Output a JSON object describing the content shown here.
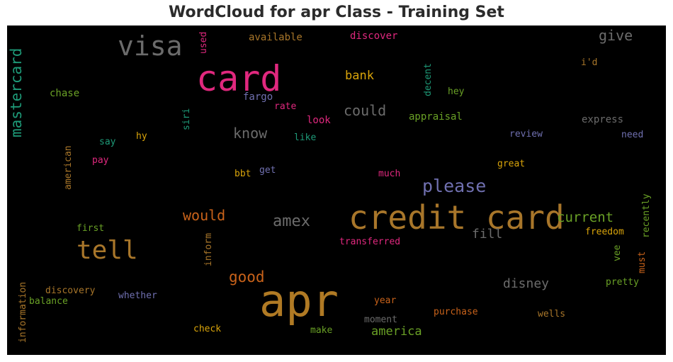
{
  "title": "WordCloud for apr Class - Training Set",
  "words": [
    {
      "text": "apr",
      "color": "#b07a24"
    },
    {
      "text": "credit card",
      "color": "#a8762a"
    },
    {
      "text": "card",
      "color": "#e0287e"
    },
    {
      "text": "visa",
      "color": "#6b6b6b"
    },
    {
      "text": "tell",
      "color": "#a8762a"
    },
    {
      "text": "please",
      "color": "#7070b0"
    },
    {
      "text": "mastercard",
      "color": "#1e9a78"
    },
    {
      "text": "amex",
      "color": "#6b6b6b"
    },
    {
      "text": "would",
      "color": "#c8621a"
    },
    {
      "text": "current",
      "color": "#6aa126"
    },
    {
      "text": "good",
      "color": "#c8621a"
    },
    {
      "text": "know",
      "color": "#6b6b6b"
    },
    {
      "text": "could",
      "color": "#6b6b6b"
    },
    {
      "text": "give",
      "color": "#6b6b6b"
    },
    {
      "text": "disney",
      "color": "#6b6b6b"
    },
    {
      "text": "bank",
      "color": "#d9a40a"
    },
    {
      "text": "fill",
      "color": "#6b6b6b"
    },
    {
      "text": "america",
      "color": "#6aa126"
    },
    {
      "text": "available",
      "color": "#a8762a"
    },
    {
      "text": "discover",
      "color": "#e0287e"
    },
    {
      "text": "used",
      "color": "#e0287e"
    },
    {
      "text": "i'd",
      "color": "#a8762a"
    },
    {
      "text": "chase",
      "color": "#6aa126"
    },
    {
      "text": "fargo",
      "color": "#7070b0"
    },
    {
      "text": "rate",
      "color": "#e0287e"
    },
    {
      "text": "decent",
      "color": "#1e9a78"
    },
    {
      "text": "hey",
      "color": "#6aa126"
    },
    {
      "text": "siri",
      "color": "#1e9a78"
    },
    {
      "text": "look",
      "color": "#e0287e"
    },
    {
      "text": "appraisal",
      "color": "#6aa126"
    },
    {
      "text": "express",
      "color": "#6b6b6b"
    },
    {
      "text": "hy",
      "color": "#d9a40a"
    },
    {
      "text": "like",
      "color": "#1e9a78"
    },
    {
      "text": "review",
      "color": "#7070b0"
    },
    {
      "text": "need",
      "color": "#7070b0"
    },
    {
      "text": "say",
      "color": "#1e9a78"
    },
    {
      "text": "american",
      "color": "#a8762a"
    },
    {
      "text": "pay",
      "color": "#e0287e"
    },
    {
      "text": "great",
      "color": "#d9a40a"
    },
    {
      "text": "bbt",
      "color": "#d9a40a"
    },
    {
      "text": "get",
      "color": "#7070b0"
    },
    {
      "text": "much",
      "color": "#e0287e"
    },
    {
      "text": "recently",
      "color": "#6aa126"
    },
    {
      "text": "first",
      "color": "#6aa126"
    },
    {
      "text": "freedom",
      "color": "#d9a40a"
    },
    {
      "text": "inform",
      "color": "#a8762a"
    },
    {
      "text": "transferred",
      "color": "#e0287e"
    },
    {
      "text": "vee",
      "color": "#6aa126"
    },
    {
      "text": "must",
      "color": "#c8621a"
    },
    {
      "text": "pretty",
      "color": "#6aa126"
    },
    {
      "text": "discovery",
      "color": "#a8762a"
    },
    {
      "text": "balance",
      "color": "#6aa126"
    },
    {
      "text": "whether",
      "color": "#7070b0"
    },
    {
      "text": "information",
      "color": "#a8762a"
    },
    {
      "text": "year",
      "color": "#c8621a"
    },
    {
      "text": "purchase",
      "color": "#c8621a"
    },
    {
      "text": "wells",
      "color": "#a8762a"
    },
    {
      "text": "moment",
      "color": "#6b6b6b"
    },
    {
      "text": "check",
      "color": "#d9a40a"
    },
    {
      "text": "make",
      "color": "#6aa126"
    }
  ]
}
